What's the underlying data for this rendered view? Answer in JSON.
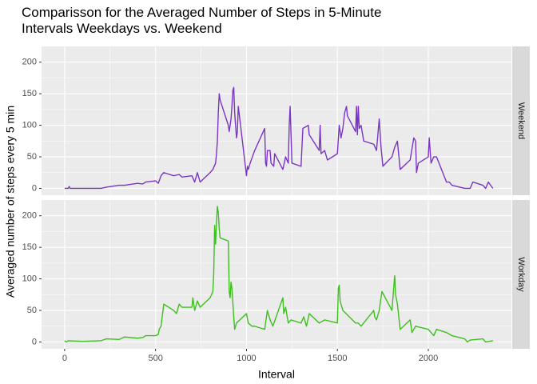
{
  "chart_data": [
    {
      "type": "line",
      "title": "Comparisson for the Averaged Number of Steps in 5-Minute Intervals Weekdays vs. Weekend",
      "y_label": "Averaged number of steps every 5 min",
      "x": [
        0,
        20,
        25,
        30,
        100,
        200,
        230,
        300,
        330,
        400,
        430,
        445,
        500,
        515,
        530,
        545,
        600,
        630,
        645,
        700,
        715,
        730,
        745,
        800,
        815,
        830,
        835,
        840,
        845,
        850,
        855,
        900,
        905,
        910,
        915,
        920,
        925,
        930,
        935,
        940,
        945,
        950,
        955,
        1000,
        1005,
        1010,
        1020,
        1045,
        1100,
        1105,
        1110,
        1115,
        1130,
        1135,
        1150,
        1155,
        1200,
        1215,
        1230,
        1235,
        1240,
        1250,
        1300,
        1310,
        1340,
        1345,
        1400,
        1405,
        1410,
        1430,
        1445,
        1500,
        1510,
        1520,
        1530,
        1540,
        1550,
        1555,
        1600,
        1605,
        1610,
        1615,
        1620,
        1630,
        1645,
        1700,
        1715,
        1730,
        1740,
        1750,
        1800,
        1815,
        1830,
        1845,
        1900,
        1920,
        1930,
        1935,
        1945,
        2000,
        2005,
        2010,
        2015,
        2030,
        2045,
        2100,
        2115,
        2130,
        2200,
        2230,
        2245,
        2300,
        2315,
        2330,
        2355
      ],
      "series": [
        {
          "name": "Weekend",
          "color": "#7b35c4",
          "values": [
            0,
            0,
            3,
            0,
            0,
            0,
            2,
            5,
            5,
            8,
            7,
            10,
            12,
            8,
            20,
            25,
            20,
            22,
            18,
            20,
            10,
            25,
            10,
            25,
            30,
            40,
            55,
            75,
            120,
            150,
            140,
            100,
            90,
            100,
            110,
            130,
            155,
            160,
            120,
            100,
            80,
            90,
            130,
            20,
            35,
            30,
            40,
            60,
            95,
            40,
            35,
            60,
            60,
            40,
            35,
            55,
            30,
            50,
            40,
            100,
            130,
            40,
            35,
            95,
            100,
            85,
            60,
            100,
            55,
            60,
            45,
            55,
            100,
            80,
            95,
            120,
            130,
            115,
            90,
            130,
            85,
            130,
            95,
            100,
            75,
            70,
            60,
            110,
            65,
            35,
            50,
            65,
            75,
            30,
            45,
            80,
            75,
            25,
            40,
            50,
            80,
            60,
            40,
            50,
            50,
            10,
            10,
            5,
            0,
            0,
            10,
            5,
            0,
            10,
            0
          ]
        }
      ],
      "xlim": [
        -127,
        2457
      ],
      "ylim": [
        -10.8,
        225
      ],
      "yticks": [
        0,
        50,
        100,
        150,
        200
      ],
      "grid": true
    },
    {
      "type": "line",
      "x_label": "Interval",
      "x": [
        0,
        10,
        20,
        100,
        200,
        230,
        300,
        330,
        400,
        430,
        445,
        500,
        515,
        520,
        530,
        545,
        600,
        615,
        630,
        645,
        700,
        705,
        715,
        730,
        745,
        800,
        815,
        820,
        825,
        830,
        835,
        840,
        845,
        850,
        855,
        900,
        905,
        910,
        915,
        920,
        930,
        935,
        945,
        1000,
        1010,
        1030,
        1045,
        1100,
        1115,
        1130,
        1145,
        1200,
        1205,
        1215,
        1230,
        1245,
        1300,
        1315,
        1330,
        1345,
        1400,
        1430,
        1500,
        1505,
        1510,
        1515,
        1530,
        1600,
        1615,
        1630,
        1700,
        1705,
        1715,
        1730,
        1745,
        1800,
        1815,
        1820,
        1830,
        1845,
        1900,
        1910,
        1930,
        2000,
        2030,
        2045,
        2100,
        2130,
        2200,
        2215,
        2230,
        2300,
        2315,
        2355
      ],
      "series": [
        {
          "name": "Workday",
          "color": "#3dbf1f",
          "values": [
            2,
            0,
            2,
            1,
            2,
            5,
            4,
            8,
            6,
            7,
            10,
            10,
            12,
            20,
            25,
            60,
            50,
            45,
            60,
            55,
            55,
            70,
            50,
            65,
            55,
            70,
            80,
            110,
            185,
            155,
            190,
            215,
            205,
            180,
            165,
            160,
            80,
            70,
            95,
            85,
            40,
            20,
            30,
            45,
            30,
            25,
            25,
            20,
            50,
            35,
            25,
            70,
            45,
            55,
            30,
            35,
            30,
            40,
            25,
            45,
            30,
            35,
            30,
            85,
            90,
            65,
            50,
            30,
            30,
            25,
            50,
            40,
            35,
            50,
            80,
            50,
            105,
            75,
            60,
            20,
            35,
            15,
            25,
            20,
            10,
            20,
            15,
            10,
            5,
            0,
            3,
            5,
            0,
            2
          ]
        }
      ],
      "xlim": [
        -127,
        2457
      ],
      "xticks": [
        0,
        500,
        1000,
        1500,
        2000
      ],
      "ylim": [
        -10.8,
        225
      ],
      "yticks": [
        0,
        50,
        100,
        150,
        200
      ],
      "grid": true
    }
  ]
}
